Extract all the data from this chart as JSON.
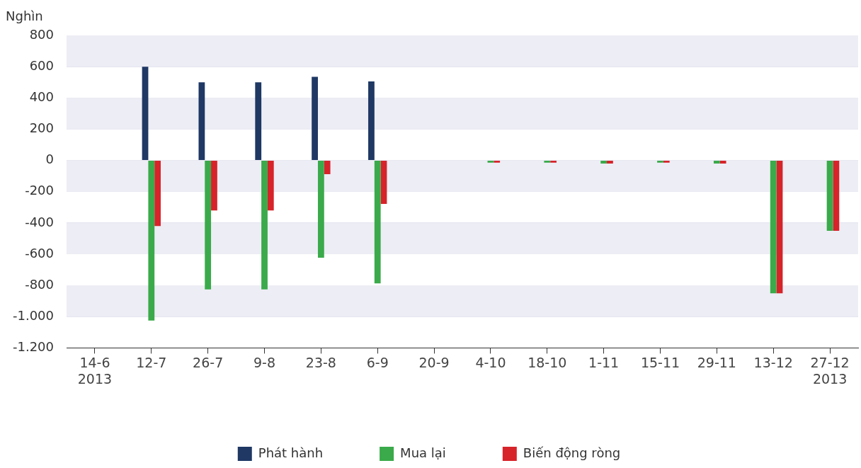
{
  "chart_data": {
    "type": "bar",
    "ylabel": "Nghìn",
    "categories": [
      "14-6\n2013",
      "12-7",
      "26-7",
      "9-8",
      "23-8",
      "6-9",
      "20-9",
      "4-10",
      "18-10",
      "1-11",
      "15-11",
      "29-11",
      "13-12",
      "27-12\n2013"
    ],
    "series": [
      {
        "name": "Phát hành",
        "color": "#1f3864",
        "values": [
          null,
          600,
          500,
          500,
          535,
          505,
          null,
          null,
          null,
          null,
          null,
          null,
          null,
          null
        ]
      },
      {
        "name": "Mua lại",
        "color": "#3aaa4a",
        "values": [
          null,
          -1025,
          -825,
          -825,
          -623,
          -787,
          null,
          -15,
          -15,
          -20,
          -15,
          -20,
          -850,
          -450
        ]
      },
      {
        "name": "Biến động ròng",
        "color": "#d7232a",
        "values": [
          null,
          -420,
          -320,
          -320,
          -88,
          -278,
          null,
          -15,
          -15,
          -20,
          -15,
          -20,
          -850,
          -450
        ]
      }
    ],
    "ylim": [
      -1200,
      800
    ],
    "yticks": [
      {
        "value": -1200,
        "label": "-1.200"
      },
      {
        "value": -1000,
        "label": "-1.000"
      },
      -800,
      -600,
      -400,
      -200,
      0,
      200,
      400,
      600,
      800
    ],
    "grid": true,
    "legend": "bottom"
  }
}
